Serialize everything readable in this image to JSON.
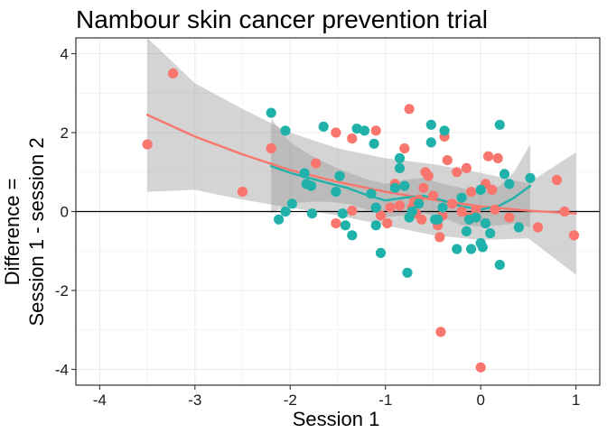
{
  "chart_data": {
    "type": "scatter",
    "title": "Nambour skin cancer prevention trial",
    "xlabel": "Session 1",
    "ylabel": [
      "Difference =",
      "Session 1 - session 2"
    ],
    "xlim": [
      -4.25,
      1.25
    ],
    "ylim": [
      -4.4,
      4.4
    ],
    "xticks": [
      -4,
      -3,
      -2,
      -1,
      0,
      1
    ],
    "yticks": [
      -4,
      -2,
      0,
      2,
      4
    ],
    "grid": true,
    "reference_line_y": 0,
    "colors": {
      "groupA": "#f8766d",
      "groupB": "#20b2aa",
      "band": "#999999",
      "background": "#ffffff",
      "grid": "#ebebeb"
    },
    "series": [
      {
        "color": "#f8766d",
        "points": [
          [
            -3.5,
            1.7
          ],
          [
            -3.23,
            3.5
          ],
          [
            -2.5,
            0.5
          ],
          [
            -2.2,
            1.6
          ],
          [
            -1.73,
            1.22
          ],
          [
            -1.52,
            2.0
          ],
          [
            -1.52,
            -0.3
          ],
          [
            -1.35,
            1.85
          ],
          [
            -1.35,
            0.02
          ],
          [
            -1.1,
            2.05
          ],
          [
            -1.05,
            -0.1
          ],
          [
            -0.98,
            -0.3
          ],
          [
            -0.95,
            0.1
          ],
          [
            -0.9,
            0.7
          ],
          [
            -0.85,
            0.15
          ],
          [
            -0.8,
            1.6
          ],
          [
            -0.75,
            2.6
          ],
          [
            -0.72,
            0.1
          ],
          [
            -0.7,
            0.25
          ],
          [
            -0.68,
            -0.05
          ],
          [
            -0.65,
            0.3
          ],
          [
            -0.62,
            -0.2
          ],
          [
            -0.6,
            0.6
          ],
          [
            -0.58,
            1.0
          ],
          [
            -0.55,
            0.9
          ],
          [
            -0.5,
            0.4
          ],
          [
            -0.45,
            -0.35
          ],
          [
            -0.43,
            -0.65
          ],
          [
            -0.42,
            -3.05
          ],
          [
            -0.4,
            -0.1
          ],
          [
            -0.38,
            1.9
          ],
          [
            -0.35,
            1.3
          ],
          [
            -0.3,
            0.2
          ],
          [
            -0.25,
            1.0
          ],
          [
            -0.2,
            0.0
          ],
          [
            -0.15,
            1.1
          ],
          [
            -0.12,
            -0.15
          ],
          [
            -0.1,
            0.5
          ],
          [
            -0.05,
            0.05
          ],
          [
            0.0,
            -3.95
          ],
          [
            0.05,
            0.7
          ],
          [
            0.08,
            1.4
          ],
          [
            0.12,
            0.55
          ],
          [
            0.15,
            0.05
          ],
          [
            0.18,
            1.35
          ],
          [
            0.3,
            -0.15
          ],
          [
            0.6,
            -0.4
          ],
          [
            0.88,
            0.0
          ],
          [
            0.98,
            -0.6
          ],
          [
            0.8,
            0.8
          ]
        ]
      },
      {
        "color": "#20b2aa",
        "points": [
          [
            -2.2,
            2.5
          ],
          [
            -2.12,
            -0.2
          ],
          [
            -2.05,
            2.05
          ],
          [
            -2.05,
            0.0
          ],
          [
            -1.98,
            0.2
          ],
          [
            -1.85,
            0.97
          ],
          [
            -1.83,
            0.7
          ],
          [
            -1.78,
            0.65
          ],
          [
            -1.77,
            -0.05
          ],
          [
            -1.65,
            2.15
          ],
          [
            -1.52,
            0.5
          ],
          [
            -1.48,
            0.9
          ],
          [
            -1.45,
            -0.05
          ],
          [
            -1.42,
            -0.35
          ],
          [
            -1.35,
            -0.6
          ],
          [
            -1.3,
            2.1
          ],
          [
            -1.22,
            2.05
          ],
          [
            -1.15,
            0.45
          ],
          [
            -1.12,
            1.72
          ],
          [
            -1.1,
            0.1
          ],
          [
            -1.1,
            -0.35
          ],
          [
            -1.05,
            -1.05
          ],
          [
            -0.9,
            0.6
          ],
          [
            -0.85,
            1.35
          ],
          [
            -0.85,
            1.1
          ],
          [
            -0.8,
            0.65
          ],
          [
            -0.77,
            -1.55
          ],
          [
            -0.75,
            -0.15
          ],
          [
            -0.72,
            0.0
          ],
          [
            -0.65,
            0.2
          ],
          [
            -0.52,
            2.2
          ],
          [
            -0.52,
            1.75
          ],
          [
            -0.48,
            -0.2
          ],
          [
            -0.45,
            -0.2
          ],
          [
            -0.4,
            0.1
          ],
          [
            -0.38,
            2.05
          ],
          [
            -0.25,
            -0.95
          ],
          [
            -0.2,
            0.35
          ],
          [
            -0.15,
            -0.5
          ],
          [
            -0.12,
            -0.2
          ],
          [
            -0.1,
            -0.95
          ],
          [
            -0.05,
            -0.15
          ],
          [
            0.0,
            0.55
          ],
          [
            0.0,
            -0.8
          ],
          [
            0.02,
            -0.9
          ],
          [
            0.05,
            -0.3
          ],
          [
            0.1,
            -0.55
          ],
          [
            0.2,
            2.2
          ],
          [
            0.2,
            -1.35
          ],
          [
            0.25,
            0.95
          ],
          [
            0.3,
            0.7
          ],
          [
            0.4,
            -0.4
          ],
          [
            0.52,
            0.85
          ]
        ]
      }
    ],
    "smooth_curves": [
      {
        "color": "#f8766d",
        "line": [
          [
            -3.5,
            2.45
          ],
          [
            -3.0,
            1.9
          ],
          [
            -2.5,
            1.45
          ],
          [
            -2.0,
            1.05
          ],
          [
            -1.5,
            0.75
          ],
          [
            -1.0,
            0.5
          ],
          [
            -0.5,
            0.3
          ],
          [
            0.0,
            0.13
          ],
          [
            0.5,
            0.02
          ],
          [
            1.0,
            -0.05
          ]
        ],
        "band_upper": [
          [
            -3.5,
            4.4
          ],
          [
            -3.0,
            3.25
          ],
          [
            -2.5,
            2.6
          ],
          [
            -2.0,
            2.0
          ],
          [
            -1.5,
            1.6
          ],
          [
            -1.0,
            1.35
          ],
          [
            -0.5,
            1.2
          ],
          [
            0.0,
            0.98
          ],
          [
            0.5,
            0.72
          ],
          [
            1.0,
            1.5
          ]
        ],
        "band_lower": [
          [
            -3.5,
            0.5
          ],
          [
            -3.0,
            0.55
          ],
          [
            -2.5,
            0.3
          ],
          [
            -2.0,
            0.1
          ],
          [
            -1.5,
            -0.1
          ],
          [
            -1.0,
            -0.35
          ],
          [
            -0.5,
            -0.6
          ],
          [
            0.0,
            -0.72
          ],
          [
            0.5,
            -0.68
          ],
          [
            1.0,
            -1.6
          ]
        ]
      },
      {
        "color": "#20b2aa",
        "line": [
          [
            -2.2,
            1.15
          ],
          [
            -2.0,
            0.98
          ],
          [
            -1.8,
            0.85
          ],
          [
            -1.6,
            0.72
          ],
          [
            -1.4,
            0.6
          ],
          [
            -1.2,
            0.42
          ],
          [
            -1.0,
            0.28
          ],
          [
            -0.8,
            0.35
          ],
          [
            -0.6,
            0.4
          ],
          [
            -0.4,
            0.28
          ],
          [
            -0.2,
            0.13
          ],
          [
            0.0,
            0.05
          ],
          [
            0.2,
            0.15
          ],
          [
            0.35,
            0.35
          ],
          [
            0.52,
            0.65
          ]
        ],
        "band_upper": [
          [
            -2.2,
            2.35
          ],
          [
            -2.0,
            1.75
          ],
          [
            -1.8,
            1.45
          ],
          [
            -1.6,
            1.2
          ],
          [
            -1.4,
            1.0
          ],
          [
            -1.2,
            0.82
          ],
          [
            -1.0,
            0.7
          ],
          [
            -0.8,
            0.8
          ],
          [
            -0.6,
            0.85
          ],
          [
            -0.4,
            0.7
          ],
          [
            -0.2,
            0.6
          ],
          [
            0.0,
            0.48
          ],
          [
            0.2,
            0.65
          ],
          [
            0.35,
            1.0
          ],
          [
            0.52,
            1.7
          ]
        ],
        "band_lower": [
          [
            -2.2,
            -0.05
          ],
          [
            -2.0,
            0.2
          ],
          [
            -1.8,
            0.25
          ],
          [
            -1.6,
            0.25
          ],
          [
            -1.4,
            0.2
          ],
          [
            -1.2,
            0.05
          ],
          [
            -1.0,
            -0.14
          ],
          [
            -0.8,
            -0.1
          ],
          [
            -0.6,
            -0.05
          ],
          [
            -0.4,
            -0.15
          ],
          [
            -0.2,
            -0.35
          ],
          [
            0.0,
            -0.38
          ],
          [
            0.2,
            -0.35
          ],
          [
            0.35,
            -0.3
          ],
          [
            0.52,
            -0.4
          ]
        ]
      }
    ]
  }
}
